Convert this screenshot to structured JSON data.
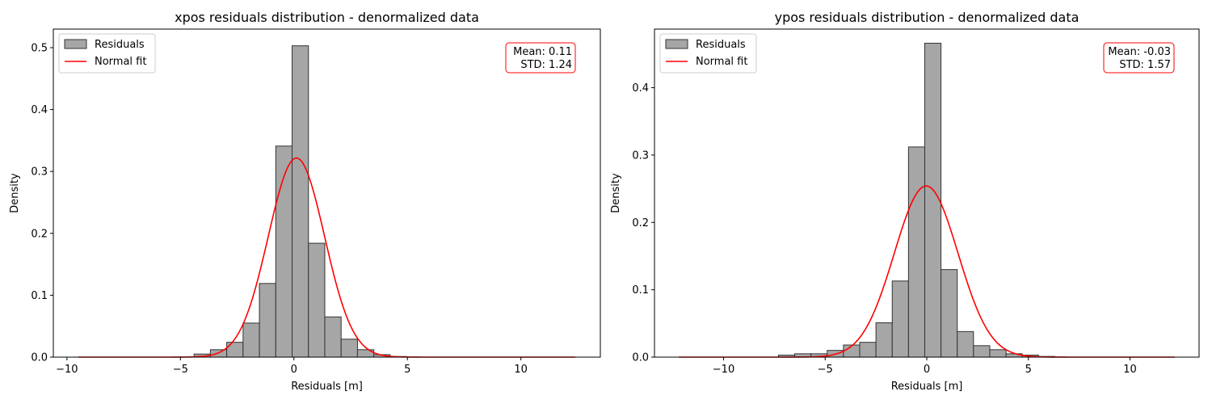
{
  "chart_data": [
    {
      "type": "bar",
      "title": "xpos residuals distribution - denormalized data",
      "xlabel": "Residuals [m]",
      "ylabel": "Density",
      "xlim": [
        -10.6,
        13.5
      ],
      "ylim": [
        0,
        0.53
      ],
      "xticks": [
        -10,
        -5,
        0,
        5,
        10
      ],
      "yticks": [
        0.0,
        0.1,
        0.2,
        0.3,
        0.4,
        0.5
      ],
      "bin_edges": [
        -4.4,
        -3.68,
        -2.96,
        -2.24,
        -1.52,
        -0.8,
        -0.08,
        0.64,
        1.36,
        2.08,
        2.8,
        3.52,
        4.24,
        4.96
      ],
      "values": [
        0.005,
        0.012,
        0.024,
        0.055,
        0.119,
        0.341,
        0.503,
        0.184,
        0.065,
        0.029,
        0.012,
        0.004,
        0.001
      ],
      "normal_fit": {
        "mean": 0.11,
        "std": 1.24,
        "x_range": [
          -9.5,
          12.4
        ]
      },
      "legend": {
        "entries": [
          "Residuals",
          "Normal fit"
        ],
        "placement": "upper-left"
      },
      "stats": [
        "Mean: 0.11",
        "STD: 1.24"
      ],
      "colors": {
        "bar": "#a6a6a6",
        "bar_edge": "#333333",
        "fit": "#ff0000",
        "stats_border": "#ff0000"
      }
    },
    {
      "type": "bar",
      "title": "ypos residuals distribution - denormalized data",
      "xlabel": "Residuals [m]",
      "ylabel": "Density",
      "xlim": [
        -13.4,
        13.4
      ],
      "ylim": [
        0,
        0.487
      ],
      "xticks": [
        -10,
        -5,
        0,
        5,
        10
      ],
      "yticks": [
        0.0,
        0.1,
        0.2,
        0.3,
        0.4
      ],
      "bin_edges": [
        -7.3,
        -6.5,
        -5.7,
        -4.9,
        -4.1,
        -3.3,
        -2.5,
        -1.7,
        -0.9,
        -0.1,
        0.7,
        1.5,
        2.3,
        3.1,
        3.9,
        4.7,
        5.5,
        6.3
      ],
      "values": [
        0.003,
        0.005,
        0.005,
        0.01,
        0.018,
        0.022,
        0.051,
        0.113,
        0.312,
        0.466,
        0.13,
        0.038,
        0.017,
        0.011,
        0.005,
        0.003,
        0.001
      ],
      "normal_fit": {
        "mean": -0.03,
        "std": 1.57,
        "x_range": [
          -12.2,
          12.2
        ]
      },
      "legend": {
        "entries": [
          "Residuals",
          "Normal fit"
        ],
        "placement": "upper-left"
      },
      "stats": [
        "Mean: -0.03",
        "STD: 1.57"
      ],
      "colors": {
        "bar": "#a6a6a6",
        "bar_edge": "#333333",
        "fit": "#ff0000",
        "stats_border": "#ff0000"
      }
    }
  ]
}
